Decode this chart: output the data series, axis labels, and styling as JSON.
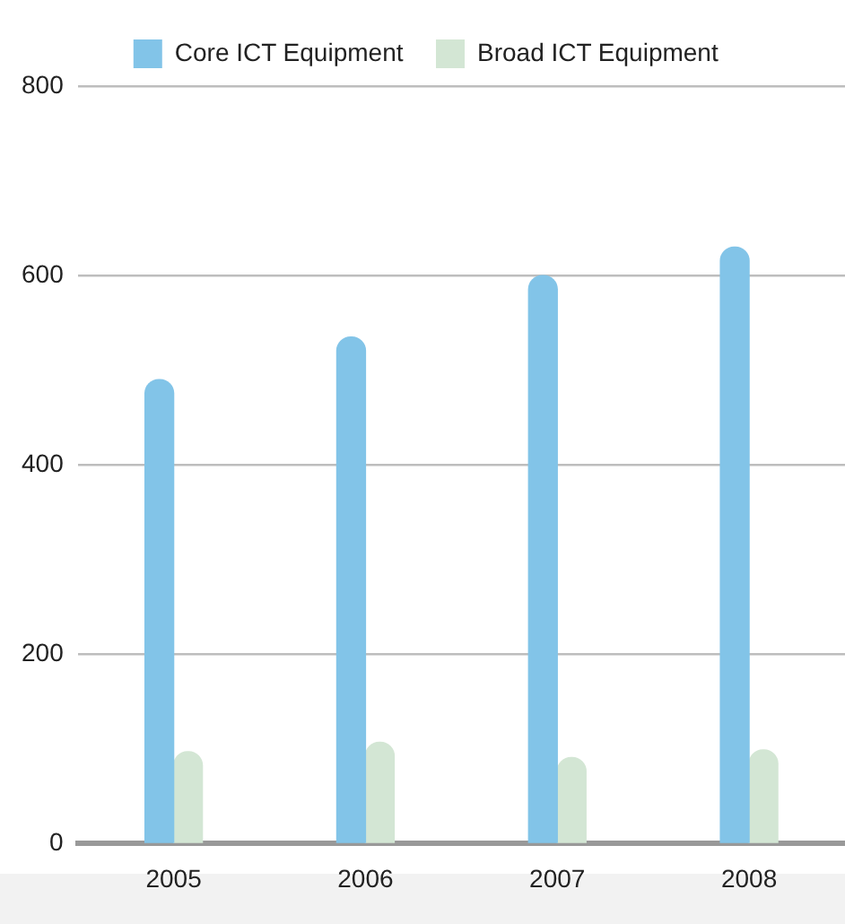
{
  "chart_data": {
    "type": "bar",
    "categories": [
      "2005",
      "2006",
      "2007",
      "2008"
    ],
    "series": [
      {
        "name": "Core ICT Equipment",
        "color": "#82c4e8",
        "values": [
          490,
          535,
          600,
          630
        ]
      },
      {
        "name": "Broad ICT Equipment",
        "color": "#d3e6d4",
        "values": [
          97,
          107,
          91,
          99
        ]
      }
    ],
    "ylim": [
      0,
      800
    ],
    "yticks": [
      0,
      200,
      400,
      600,
      800
    ],
    "grid": "y",
    "legend": "top"
  }
}
